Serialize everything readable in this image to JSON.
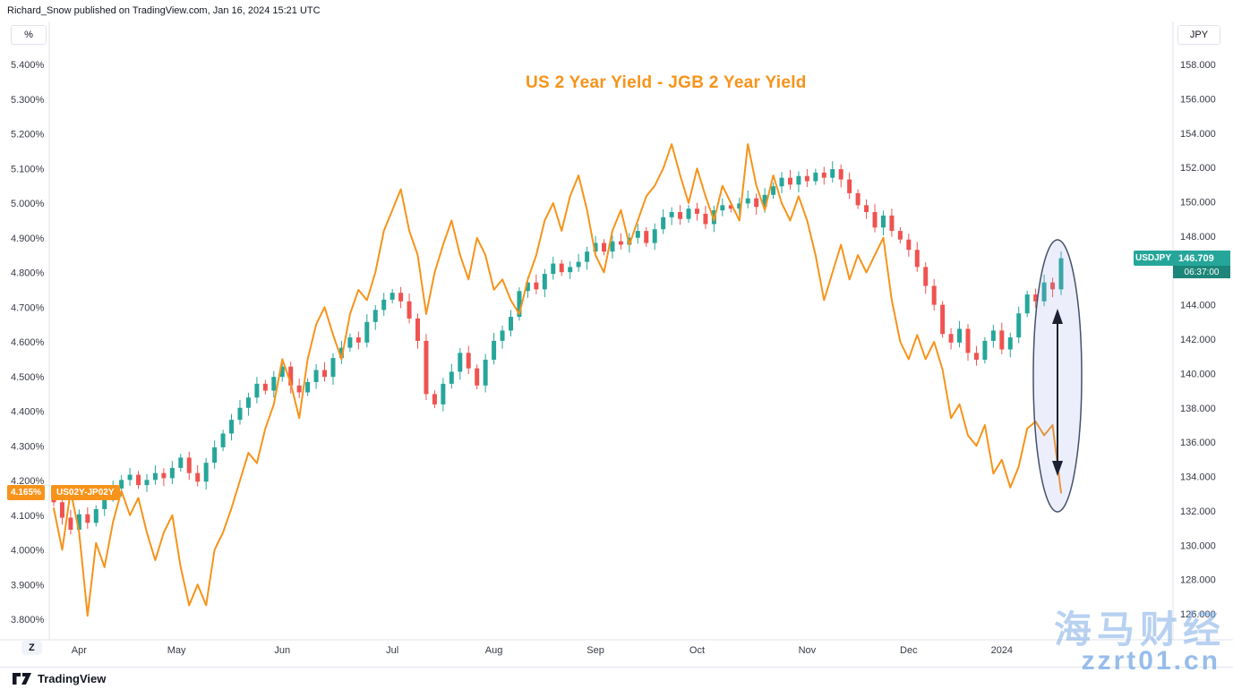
{
  "attribution": "Richard_Snow published on TradingView.com, Jan 16, 2024 15:21 UTC",
  "title": "US 2 Year Yield - JGB 2 Year Yield",
  "left_axis_unit": "%",
  "right_axis_unit": "JPY",
  "zoom_reset": "Z",
  "footer": {
    "brand": "TradingView"
  },
  "watermark": {
    "line1": "海马财经",
    "line2": "zzrt01.cn"
  },
  "price_labels": {
    "usdjpy": {
      "symbol": "USDJPY",
      "value": "146.709",
      "countdown": "06:37:00"
    },
    "spread": {
      "value": "4.165%",
      "name": "US02Y-JP02Y"
    }
  },
  "colors": {
    "spread_line": "#f7931a",
    "candle_up": "#26a69a",
    "candle_down": "#ef5350",
    "axis_text": "#363a45",
    "grid_line": "#e0e3eb",
    "annotation_stroke": "#44506b",
    "annotation_fill": "rgba(147,169,234,0.18)",
    "arrow": "#1c2030"
  },
  "chart_data": {
    "type": "line+candlestick",
    "title": "US 2 Year Yield - JGB 2 Year Yield",
    "x_range": [
      "Apr 2023",
      "Jan 2024"
    ],
    "left_axis": {
      "label": "%",
      "ticks": [
        5.4,
        5.3,
        5.2,
        5.1,
        5.0,
        4.9,
        4.8,
        4.7,
        4.6,
        4.5,
        4.4,
        4.3,
        4.2,
        4.1,
        4.0,
        3.9,
        3.8
      ]
    },
    "right_axis": {
      "label": "JPY",
      "ticks": [
        158,
        156,
        154,
        152,
        150,
        148,
        146,
        144,
        142,
        140,
        138,
        136,
        134,
        132,
        130,
        128,
        126
      ]
    },
    "months": [
      {
        "label": "Apr",
        "i": 3
      },
      {
        "label": "May",
        "i": 14.5
      },
      {
        "label": "Jun",
        "i": 27
      },
      {
        "label": "Jul",
        "i": 40
      },
      {
        "label": "Aug",
        "i": 52
      },
      {
        "label": "Sep",
        "i": 64
      },
      {
        "label": "Oct",
        "i": 76
      },
      {
        "label": "Nov",
        "i": 89
      },
      {
        "label": "Dec",
        "i": 101
      },
      {
        "label": "2024",
        "i": 112
      }
    ],
    "series": [
      {
        "name": "US02Y-JP02Y",
        "type": "line",
        "axis": "left",
        "color": "#f7931a",
        "last": 4.165,
        "values": [
          4.12,
          4.0,
          4.17,
          4.05,
          3.81,
          4.02,
          3.95,
          4.08,
          4.17,
          4.1,
          4.15,
          4.05,
          3.97,
          4.05,
          4.1,
          3.95,
          3.84,
          3.9,
          3.84,
          4.0,
          4.05,
          4.12,
          4.2,
          4.28,
          4.25,
          4.35,
          4.42,
          4.55,
          4.48,
          4.38,
          4.55,
          4.65,
          4.7,
          4.62,
          4.55,
          4.68,
          4.75,
          4.72,
          4.8,
          4.92,
          4.98,
          5.04,
          4.92,
          4.85,
          4.68,
          4.8,
          4.88,
          4.95,
          4.85,
          4.78,
          4.9,
          4.85,
          4.75,
          4.78,
          4.72,
          4.68,
          4.78,
          4.85,
          4.95,
          5.0,
          4.92,
          5.02,
          5.08,
          4.98,
          4.85,
          4.8,
          4.92,
          4.98,
          4.88,
          4.95,
          5.02,
          5.05,
          5.1,
          5.17,
          5.08,
          5.0,
          5.1,
          5.02,
          4.95,
          5.05,
          5.0,
          4.95,
          5.17,
          5.05,
          4.98,
          5.08,
          5.0,
          4.95,
          5.02,
          4.95,
          4.85,
          4.72,
          4.8,
          4.88,
          4.78,
          4.85,
          4.8,
          4.85,
          4.9,
          4.72,
          4.6,
          4.55,
          4.62,
          4.55,
          4.6,
          4.52,
          4.38,
          4.42,
          4.33,
          4.3,
          4.36,
          4.22,
          4.26,
          4.18,
          4.24,
          4.35,
          4.37,
          4.33,
          4.36,
          4.165
        ]
      },
      {
        "name": "USDJPY",
        "type": "candlestick",
        "axis": "right",
        "up_color": "#26a69a",
        "down_color": "#ef5350",
        "last": 146.709,
        "closes": [
          132.5,
          131.6,
          130.9,
          131.8,
          131.3,
          132.1,
          132.8,
          133.3,
          133.8,
          134.1,
          133.5,
          133.8,
          134.2,
          133.9,
          134.5,
          135.1,
          134.2,
          133.7,
          134.8,
          135.7,
          136.5,
          137.3,
          138.0,
          138.6,
          139.4,
          139.0,
          139.8,
          140.4,
          139.3,
          138.9,
          139.5,
          140.2,
          139.8,
          140.9,
          141.5,
          142.1,
          141.8,
          143.0,
          143.7,
          144.3,
          144.7,
          144.2,
          143.2,
          141.9,
          138.8,
          138.2,
          139.4,
          140.1,
          141.2,
          140.3,
          139.3,
          140.8,
          141.9,
          142.5,
          143.3,
          144.8,
          145.3,
          144.9,
          145.8,
          146.4,
          145.9,
          146.2,
          146.5,
          147.1,
          147.6,
          147.1,
          147.7,
          147.5,
          147.9,
          148.3,
          147.6,
          148.4,
          149.1,
          149.4,
          149.0,
          149.6,
          149.3,
          148.7,
          149.5,
          149.8,
          149.6,
          149.9,
          150.2,
          149.7,
          150.4,
          150.9,
          151.4,
          151.0,
          151.5,
          151.2,
          151.7,
          151.4,
          151.9,
          151.3,
          150.5,
          149.8,
          149.4,
          148.5,
          149.2,
          148.3,
          147.8,
          147.2,
          146.2,
          145.1,
          144.0,
          142.3,
          141.8,
          142.6,
          141.2,
          140.8,
          141.9,
          142.5,
          141.4,
          142.1,
          143.5,
          144.6,
          144.2,
          145.3,
          144.9,
          146.709
        ]
      }
    ],
    "annotation": {
      "type": "ellipse-with-arrows",
      "note": "vertical ellipse around latest candles with up and down arrows"
    }
  }
}
